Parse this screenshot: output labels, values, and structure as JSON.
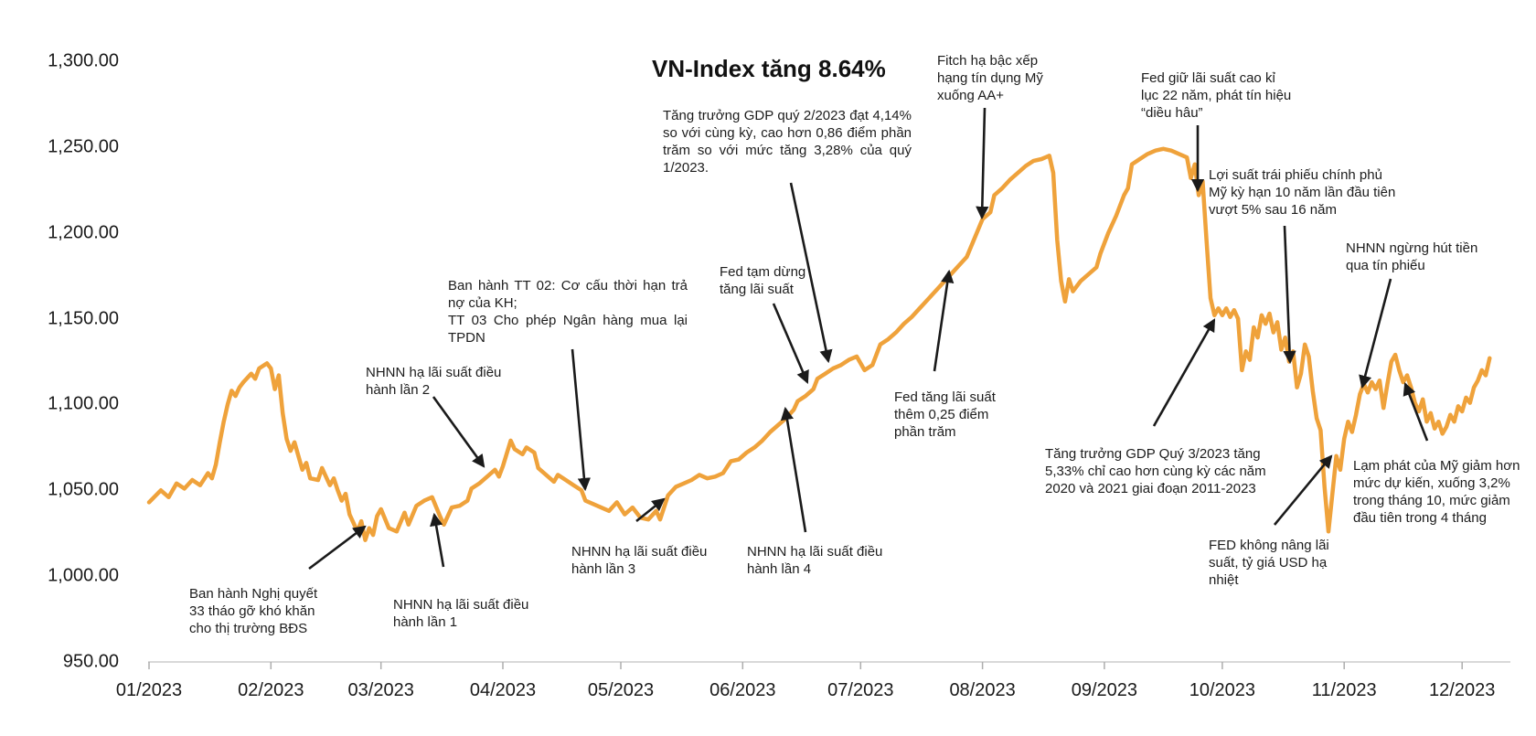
{
  "chart_data": {
    "type": "line",
    "title": "VN-Index tăng 8.64%",
    "series_name": "VN-Index",
    "line_color": "#EFA23B",
    "x_axis": {
      "tick_labels": [
        "01/2023",
        "02/2023",
        "03/2023",
        "04/2023",
        "05/2023",
        "06/2023",
        "07/2023",
        "08/2023",
        "09/2023",
        "10/2023",
        "11/2023",
        "12/2023"
      ],
      "tick_month_start_days": [
        0,
        31,
        59,
        90,
        120,
        151,
        181,
        212,
        243,
        273,
        304,
        334
      ]
    },
    "y_axis": {
      "ticks": [
        {
          "value": 950,
          "label": "950.00"
        },
        {
          "value": 1000,
          "label": "1,000.00"
        },
        {
          "value": 1050,
          "label": "1,050.00"
        },
        {
          "value": 1100,
          "label": "1,100.00"
        },
        {
          "value": 1150,
          "label": "1,150.00"
        },
        {
          "value": 1200,
          "label": "1,200.00"
        },
        {
          "value": 1250,
          "label": "1,250.00"
        },
        {
          "value": 1300,
          "label": "1,300.00"
        }
      ],
      "range": [
        950,
        1300
      ]
    },
    "x_unit": "day_of_year_2023",
    "points": [
      [
        0,
        1043
      ],
      [
        3,
        1050
      ],
      [
        5,
        1046
      ],
      [
        7,
        1054
      ],
      [
        9,
        1051
      ],
      [
        11,
        1056
      ],
      [
        13,
        1053
      ],
      [
        15,
        1060
      ],
      [
        16,
        1057
      ],
      [
        17,
        1065
      ],
      [
        18,
        1078
      ],
      [
        19,
        1090
      ],
      [
        20,
        1100
      ],
      [
        21,
        1108
      ],
      [
        22,
        1105
      ],
      [
        23,
        1110
      ],
      [
        24,
        1113
      ],
      [
        26,
        1118
      ],
      [
        27,
        1115
      ],
      [
        28,
        1121
      ],
      [
        30,
        1124
      ],
      [
        31,
        1121
      ],
      [
        32,
        1109
      ],
      [
        33,
        1117
      ],
      [
        34,
        1095
      ],
      [
        35,
        1080
      ],
      [
        36,
        1073
      ],
      [
        37,
        1078
      ],
      [
        39,
        1062
      ],
      [
        40,
        1066
      ],
      [
        41,
        1057
      ],
      [
        43,
        1056
      ],
      [
        44,
        1063
      ],
      [
        46,
        1053
      ],
      [
        47,
        1057
      ],
      [
        48,
        1050
      ],
      [
        49,
        1044
      ],
      [
        50,
        1048
      ],
      [
        51,
        1036
      ],
      [
        53,
        1026
      ],
      [
        54,
        1032
      ],
      [
        55,
        1021
      ],
      [
        56,
        1028
      ],
      [
        57,
        1024
      ],
      [
        58,
        1035
      ],
      [
        59,
        1039
      ],
      [
        61,
        1028
      ],
      [
        63,
        1026
      ],
      [
        65,
        1037
      ],
      [
        66,
        1030
      ],
      [
        68,
        1041
      ],
      [
        70,
        1044
      ],
      [
        72,
        1046
      ],
      [
        74,
        1035
      ],
      [
        75,
        1030
      ],
      [
        77,
        1040
      ],
      [
        79,
        1041
      ],
      [
        81,
        1044
      ],
      [
        82,
        1051
      ],
      [
        84,
        1054
      ],
      [
        86,
        1058
      ],
      [
        88,
        1062
      ],
      [
        89,
        1058
      ],
      [
        90,
        1064
      ],
      [
        92,
        1079
      ],
      [
        93,
        1074
      ],
      [
        95,
        1071
      ],
      [
        96,
        1075
      ],
      [
        98,
        1072
      ],
      [
        99,
        1063
      ],
      [
        101,
        1059
      ],
      [
        103,
        1055
      ],
      [
        104,
        1059
      ],
      [
        106,
        1056
      ],
      [
        108,
        1053
      ],
      [
        110,
        1050
      ],
      [
        111,
        1044
      ],
      [
        113,
        1042
      ],
      [
        115,
        1040
      ],
      [
        117,
        1038
      ],
      [
        119,
        1043
      ],
      [
        121,
        1036
      ],
      [
        123,
        1040
      ],
      [
        125,
        1034
      ],
      [
        127,
        1033
      ],
      [
        129,
        1038
      ],
      [
        130,
        1033
      ],
      [
        132,
        1047
      ],
      [
        134,
        1052
      ],
      [
        136,
        1054
      ],
      [
        138,
        1056
      ],
      [
        140,
        1059
      ],
      [
        142,
        1057
      ],
      [
        144,
        1058
      ],
      [
        146,
        1060
      ],
      [
        148,
        1067
      ],
      [
        150,
        1068
      ],
      [
        152,
        1072
      ],
      [
        154,
        1075
      ],
      [
        156,
        1079
      ],
      [
        158,
        1084
      ],
      [
        160,
        1088
      ],
      [
        162,
        1092
      ],
      [
        164,
        1097
      ],
      [
        165,
        1102
      ],
      [
        167,
        1105
      ],
      [
        169,
        1109
      ],
      [
        170,
        1115
      ],
      [
        172,
        1118
      ],
      [
        174,
        1121
      ],
      [
        176,
        1123
      ],
      [
        178,
        1126
      ],
      [
        180,
        1128
      ],
      [
        182,
        1120
      ],
      [
        184,
        1123
      ],
      [
        186,
        1135
      ],
      [
        188,
        1138
      ],
      [
        190,
        1142
      ],
      [
        192,
        1147
      ],
      [
        194,
        1151
      ],
      [
        196,
        1156
      ],
      [
        198,
        1161
      ],
      [
        200,
        1166
      ],
      [
        202,
        1171
      ],
      [
        204,
        1176
      ],
      [
        206,
        1181
      ],
      [
        208,
        1186
      ],
      [
        210,
        1197
      ],
      [
        212,
        1208
      ],
      [
        214,
        1212
      ],
      [
        215,
        1222
      ],
      [
        217,
        1226
      ],
      [
        219,
        1231
      ],
      [
        221,
        1235
      ],
      [
        223,
        1239
      ],
      [
        225,
        1242
      ],
      [
        227,
        1243
      ],
      [
        229,
        1245
      ],
      [
        230,
        1235
      ],
      [
        231,
        1196
      ],
      [
        232,
        1172
      ],
      [
        233,
        1160
      ],
      [
        234,
        1173
      ],
      [
        235,
        1166
      ],
      [
        237,
        1172
      ],
      [
        239,
        1176
      ],
      [
        241,
        1180
      ],
      [
        242,
        1188
      ],
      [
        244,
        1200
      ],
      [
        246,
        1210
      ],
      [
        248,
        1222
      ],
      [
        249,
        1226
      ],
      [
        250,
        1240
      ],
      [
        252,
        1243
      ],
      [
        254,
        1246
      ],
      [
        256,
        1248
      ],
      [
        258,
        1249
      ],
      [
        260,
        1248
      ],
      [
        262,
        1246
      ],
      [
        264,
        1244
      ],
      [
        265,
        1232
      ],
      [
        266,
        1240
      ],
      [
        267,
        1222
      ],
      [
        268,
        1230
      ],
      [
        269,
        1195
      ],
      [
        270,
        1162
      ],
      [
        271,
        1152
      ],
      [
        272,
        1156
      ],
      [
        273,
        1152
      ],
      [
        274,
        1156
      ],
      [
        275,
        1151
      ],
      [
        276,
        1155
      ],
      [
        277,
        1150
      ],
      [
        278,
        1120
      ],
      [
        279,
        1131
      ],
      [
        280,
        1126
      ],
      [
        281,
        1145
      ],
      [
        282,
        1139
      ],
      [
        283,
        1152
      ],
      [
        284,
        1147
      ],
      [
        285,
        1153
      ],
      [
        286,
        1142
      ],
      [
        287,
        1148
      ],
      [
        288,
        1132
      ],
      [
        289,
        1139
      ],
      [
        290,
        1125
      ],
      [
        291,
        1131
      ],
      [
        292,
        1110
      ],
      [
        293,
        1118
      ],
      [
        294,
        1135
      ],
      [
        295,
        1128
      ],
      [
        296,
        1108
      ],
      [
        297,
        1092
      ],
      [
        298,
        1085
      ],
      [
        299,
        1052
      ],
      [
        300,
        1026
      ],
      [
        301,
        1048
      ],
      [
        302,
        1070
      ],
      [
        303,
        1062
      ],
      [
        304,
        1080
      ],
      [
        305,
        1090
      ],
      [
        306,
        1084
      ],
      [
        307,
        1094
      ],
      [
        308,
        1106
      ],
      [
        309,
        1112
      ],
      [
        310,
        1107
      ],
      [
        311,
        1113
      ],
      [
        312,
        1109
      ],
      [
        313,
        1114
      ],
      [
        314,
        1098
      ],
      [
        315,
        1112
      ],
      [
        316,
        1125
      ],
      [
        317,
        1129
      ],
      [
        318,
        1120
      ],
      [
        319,
        1113
      ],
      [
        320,
        1117
      ],
      [
        321,
        1110
      ],
      [
        322,
        1101
      ],
      [
        323,
        1096
      ],
      [
        324,
        1103
      ],
      [
        325,
        1090
      ],
      [
        326,
        1095
      ],
      [
        327,
        1086
      ],
      [
        328,
        1090
      ],
      [
        329,
        1083
      ],
      [
        330,
        1087
      ],
      [
        331,
        1094
      ],
      [
        332,
        1090
      ],
      [
        333,
        1099
      ],
      [
        334,
        1096
      ],
      [
        335,
        1104
      ],
      [
        336,
        1101
      ],
      [
        337,
        1110
      ],
      [
        338,
        1114
      ],
      [
        339,
        1120
      ],
      [
        340,
        1117
      ],
      [
        341,
        1127
      ]
    ],
    "annotations": [
      {
        "id": "gdp-q2",
        "text": "Tăng trưởng GDP quý 2/2023 đạt 4,14% so với cùng kỳ, cao hơn 0,86 điểm phần trăm so với mức tăng 3,28% của quý 1/2023."
      },
      {
        "id": "fitch",
        "text": "Fitch hạ bậc xếp hạng tín dụng Mỹ xuống AA+"
      },
      {
        "id": "fed-giu",
        "text": "Fed giữ lãi suất cao kỉ lục 22 năm, phát tín hiệu “diều hâu”"
      },
      {
        "id": "loi-suat",
        "text": "Lợi suất trái phiếu chính phủ Mỹ kỳ hạn 10 năm lần đầu tiên vượt 5% sau 16 năm"
      },
      {
        "id": "nhnn-ngung",
        "text": "NHNN ngừng hút tiền qua tín phiếu"
      },
      {
        "id": "tt02",
        "text": "Ban hành TT 02: Cơ cấu thời hạn trả nợ của KH;\nTT 03 Cho phép Ngân hàng mua lại TPDN"
      },
      {
        "id": "nhnn-lan2",
        "text": "NHNN hạ lãi suất điều hành lần 2"
      },
      {
        "id": "nq33",
        "text": "Ban hành Nghị quyết 33 tháo gỡ khó khăn cho thị trường BĐS"
      },
      {
        "id": "nhnn-lan1",
        "text": "NHNN hạ lãi suất điều hành lần 1"
      },
      {
        "id": "nhnn-lan3",
        "text": "NHNN hạ lãi suất điều hành lần 3"
      },
      {
        "id": "nhnn-lan4",
        "text": "NHNN hạ lãi suất điều hành lần 4"
      },
      {
        "id": "fed-tam-dung",
        "text": "Fed tạm dừng tăng lãi suất"
      },
      {
        "id": "fed-tang",
        "text": "Fed tăng lãi suất thêm 0,25 điểm phần trăm"
      },
      {
        "id": "gdp-q3",
        "text": "Tăng trưởng GDP Quý 3/2023 tăng 5,33% chỉ cao hơn cùng kỳ các năm 2020 và 2021 giai đoạn 2011-2023"
      },
      {
        "id": "fed-khong",
        "text": "FED không nâng lãi suất, tỷ giá USD hạ nhiệt"
      },
      {
        "id": "lam-phat",
        "text": "Lạm phát của Mỹ giảm hơn mức dự kiến, xuống 3,2% trong tháng 10, mức giảm đầu tiên trong 4 tháng"
      }
    ],
    "colors": {
      "line": "#EFA23B",
      "axis_line": "#D9D9D9",
      "tick_mark": "#ADADAD",
      "text": "#1a1a1a",
      "arrow": "#1a1a1a"
    },
    "legend": "none",
    "grid": "off"
  }
}
